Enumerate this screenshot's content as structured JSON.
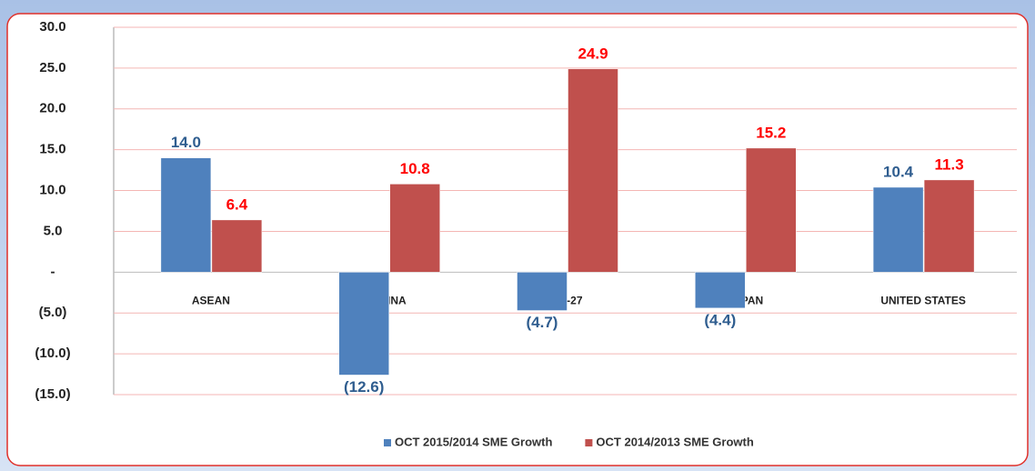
{
  "chart_data": {
    "type": "bar",
    "categories": [
      "ASEAN",
      "CHINA",
      "EU-27",
      "JAPAN",
      "UNITED STATES"
    ],
    "series": [
      {
        "name": "OCT 2015/2014 SME Growth",
        "color": "#4f81bd",
        "label_color": "#2f5d8f",
        "values": [
          14.0,
          -12.6,
          -4.7,
          -4.4,
          10.4
        ],
        "value_labels": [
          "14.0",
          "(12.6)",
          "(4.7)",
          "(4.4)",
          "10.4"
        ]
      },
      {
        "name": "OCT 2014/2013 SME Growth",
        "color": "#c0504d",
        "label_color": "#ff0000",
        "values": [
          6.4,
          10.8,
          24.9,
          15.2,
          11.3
        ],
        "value_labels": [
          "6.4",
          "10.8",
          "24.9",
          "15.2",
          "11.3"
        ]
      }
    ],
    "ylim": [
      -15,
      30
    ],
    "yticks": [
      {
        "value": 30,
        "label": "30.0"
      },
      {
        "value": 25,
        "label": "25.0"
      },
      {
        "value": 20,
        "label": "20.0"
      },
      {
        "value": 15,
        "label": "15.0"
      },
      {
        "value": 10,
        "label": "10.0"
      },
      {
        "value": 5,
        "label": "5.0"
      },
      {
        "value": 0,
        "label": "-"
      },
      {
        "value": -5,
        "label": "(5.0)"
      },
      {
        "value": -10,
        "label": "(10.0)"
      },
      {
        "value": -15,
        "label": "(15.0)"
      }
    ],
    "grid": true,
    "legend": "bottom"
  }
}
